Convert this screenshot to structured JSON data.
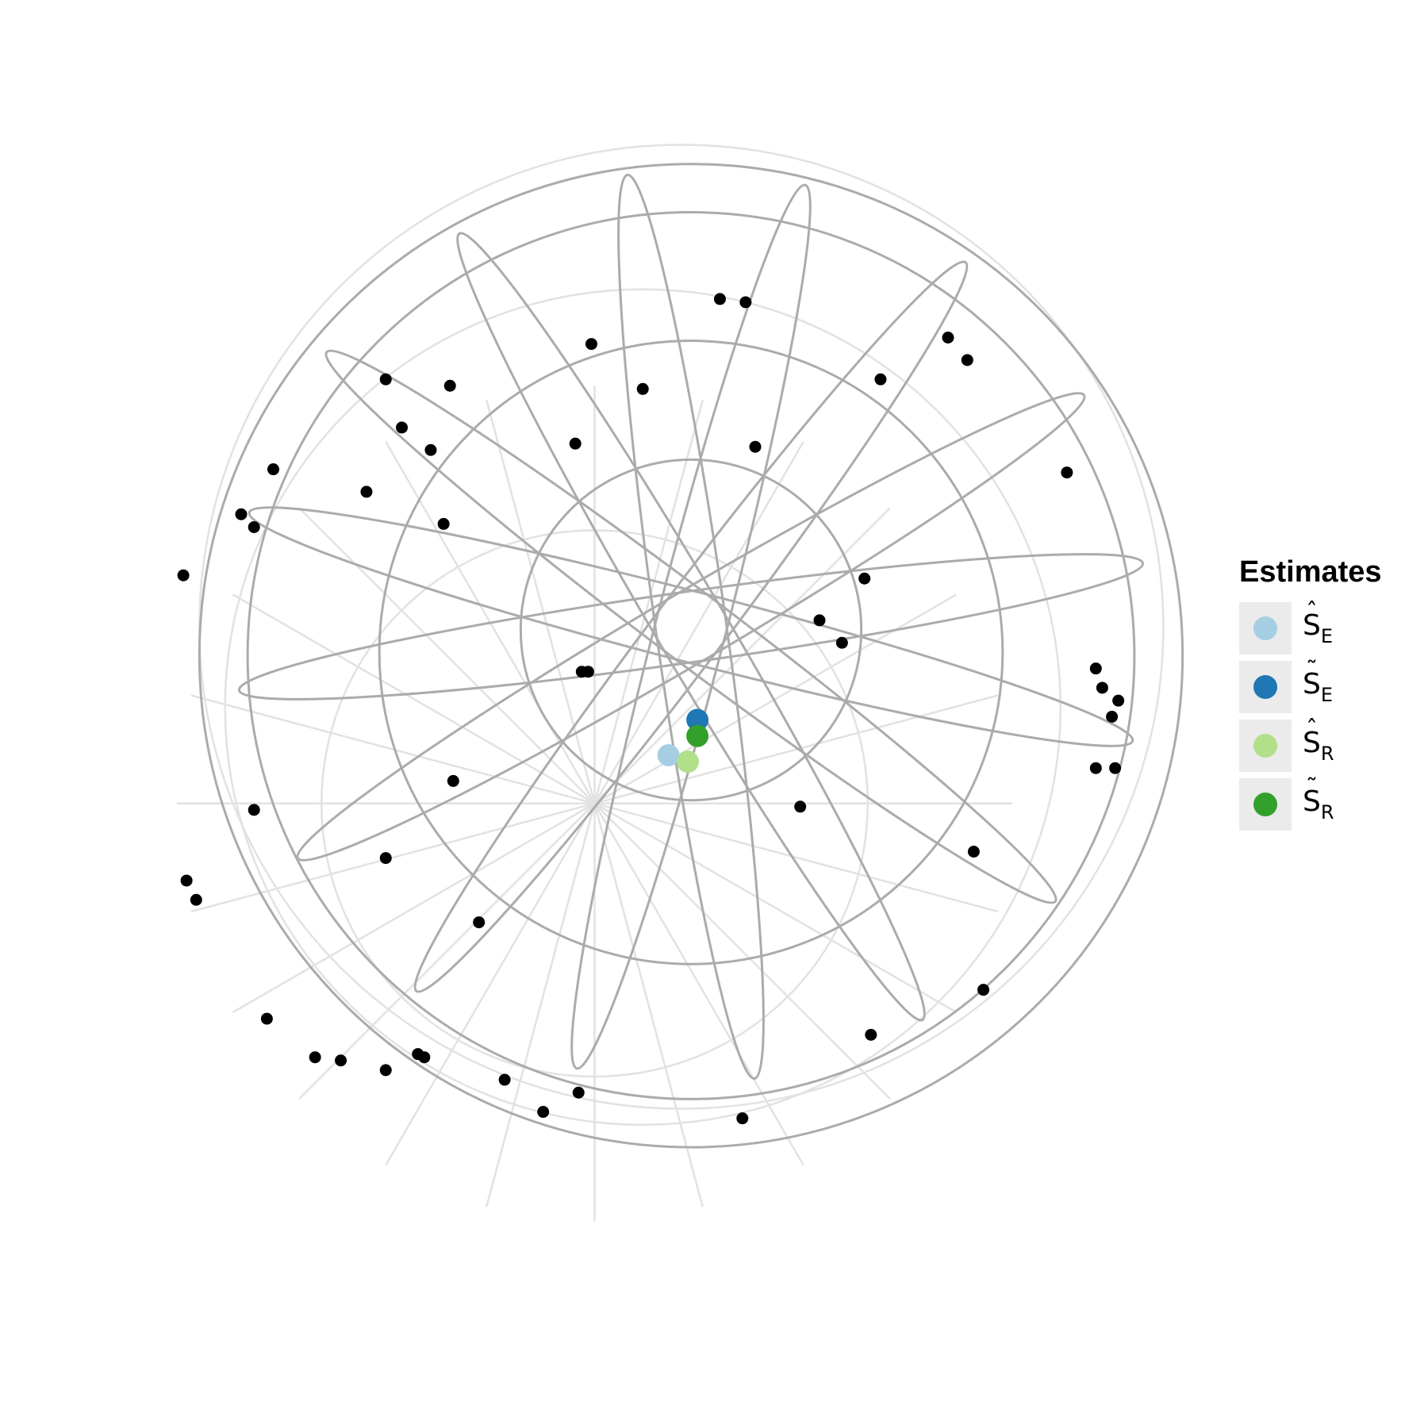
{
  "chart_data": {
    "type": "scatter",
    "projection": "stereographic (polar)",
    "grid": "on",
    "legend": {
      "position": "right",
      "title": "Estimates",
      "entries": [
        {
          "base": "S",
          "accent": "hat",
          "accent_char": "ˆ",
          "sub": "E",
          "color": "#a6cee3"
        },
        {
          "base": "S",
          "accent": "tilde",
          "accent_char": "˜",
          "sub": "E",
          "color": "#1f78b4"
        },
        {
          "base": "S",
          "accent": "hat",
          "accent_char": "ˆ",
          "sub": "R",
          "color": "#b2df8a"
        },
        {
          "base": "S",
          "accent": "tilde",
          "accent_char": "˜",
          "sub": "R",
          "color": "#33a02c"
        }
      ]
    },
    "estimates": [
      {
        "x": -0.07,
        "y": -0.4,
        "color": "#a6cee3"
      },
      {
        "x": 0.02,
        "y": -0.29,
        "color": "#1f78b4"
      },
      {
        "x": -0.01,
        "y": -0.42,
        "color": "#b2df8a"
      },
      {
        "x": 0.02,
        "y": -0.34,
        "color": "#33a02c"
      }
    ],
    "observations": [
      {
        "x": 0.09,
        "y": 1.02
      },
      {
        "x": 0.17,
        "y": 1.01
      },
      {
        "x": -0.31,
        "y": 0.88
      },
      {
        "x": -0.15,
        "y": 0.74
      },
      {
        "x": -0.9,
        "y": 0.62
      },
      {
        "x": -0.95,
        "y": 0.77
      },
      {
        "x": -0.75,
        "y": 0.75
      },
      {
        "x": -0.81,
        "y": 0.55
      },
      {
        "x": -1.3,
        "y": 0.49
      },
      {
        "x": -1.4,
        "y": 0.35
      },
      {
        "x": -1.36,
        "y": 0.31
      },
      {
        "x": -1.01,
        "y": 0.42
      },
      {
        "x": -0.36,
        "y": 0.57
      },
      {
        "x": -0.77,
        "y": 0.32
      },
      {
        "x": -1.58,
        "y": 0.16
      },
      {
        "x": 0.8,
        "y": 0.9
      },
      {
        "x": 0.86,
        "y": 0.83
      },
      {
        "x": 0.59,
        "y": 0.77
      },
      {
        "x": 0.2,
        "y": 0.56
      },
      {
        "x": 1.17,
        "y": 0.48
      },
      {
        "x": 0.54,
        "y": 0.15
      },
      {
        "x": 0.4,
        "y": 0.02
      },
      {
        "x": 0.47,
        "y": -0.05
      },
      {
        "x": -0.32,
        "y": -0.14
      },
      {
        "x": -0.34,
        "y": -0.14
      },
      {
        "x": 1.26,
        "y": -0.13
      },
      {
        "x": 1.28,
        "y": -0.19
      },
      {
        "x": 1.33,
        "y": -0.23
      },
      {
        "x": 1.31,
        "y": -0.28
      },
      {
        "x": 1.26,
        "y": -0.44
      },
      {
        "x": 1.32,
        "y": -0.44
      },
      {
        "x": -0.74,
        "y": -0.48
      },
      {
        "x": -1.36,
        "y": -0.57
      },
      {
        "x": -0.95,
        "y": -0.72
      },
      {
        "x": -1.57,
        "y": -0.79
      },
      {
        "x": -1.54,
        "y": -0.85
      },
      {
        "x": -0.66,
        "y": -0.92
      },
      {
        "x": 0.34,
        "y": -0.56
      },
      {
        "x": 0.88,
        "y": -0.7
      },
      {
        "x": -1.32,
        "y": -1.22
      },
      {
        "x": -1.17,
        "y": -1.34
      },
      {
        "x": -1.09,
        "y": -1.35
      },
      {
        "x": -0.95,
        "y": -1.38
      },
      {
        "x": -0.85,
        "y": -1.33
      },
      {
        "x": -0.83,
        "y": -1.34
      },
      {
        "x": -0.58,
        "y": -1.41
      },
      {
        "x": -0.35,
        "y": -1.45
      },
      {
        "x": -0.46,
        "y": -1.51
      },
      {
        "x": 0.16,
        "y": -1.53
      },
      {
        "x": 0.56,
        "y": -1.27
      },
      {
        "x": 0.91,
        "y": -1.13
      }
    ]
  }
}
